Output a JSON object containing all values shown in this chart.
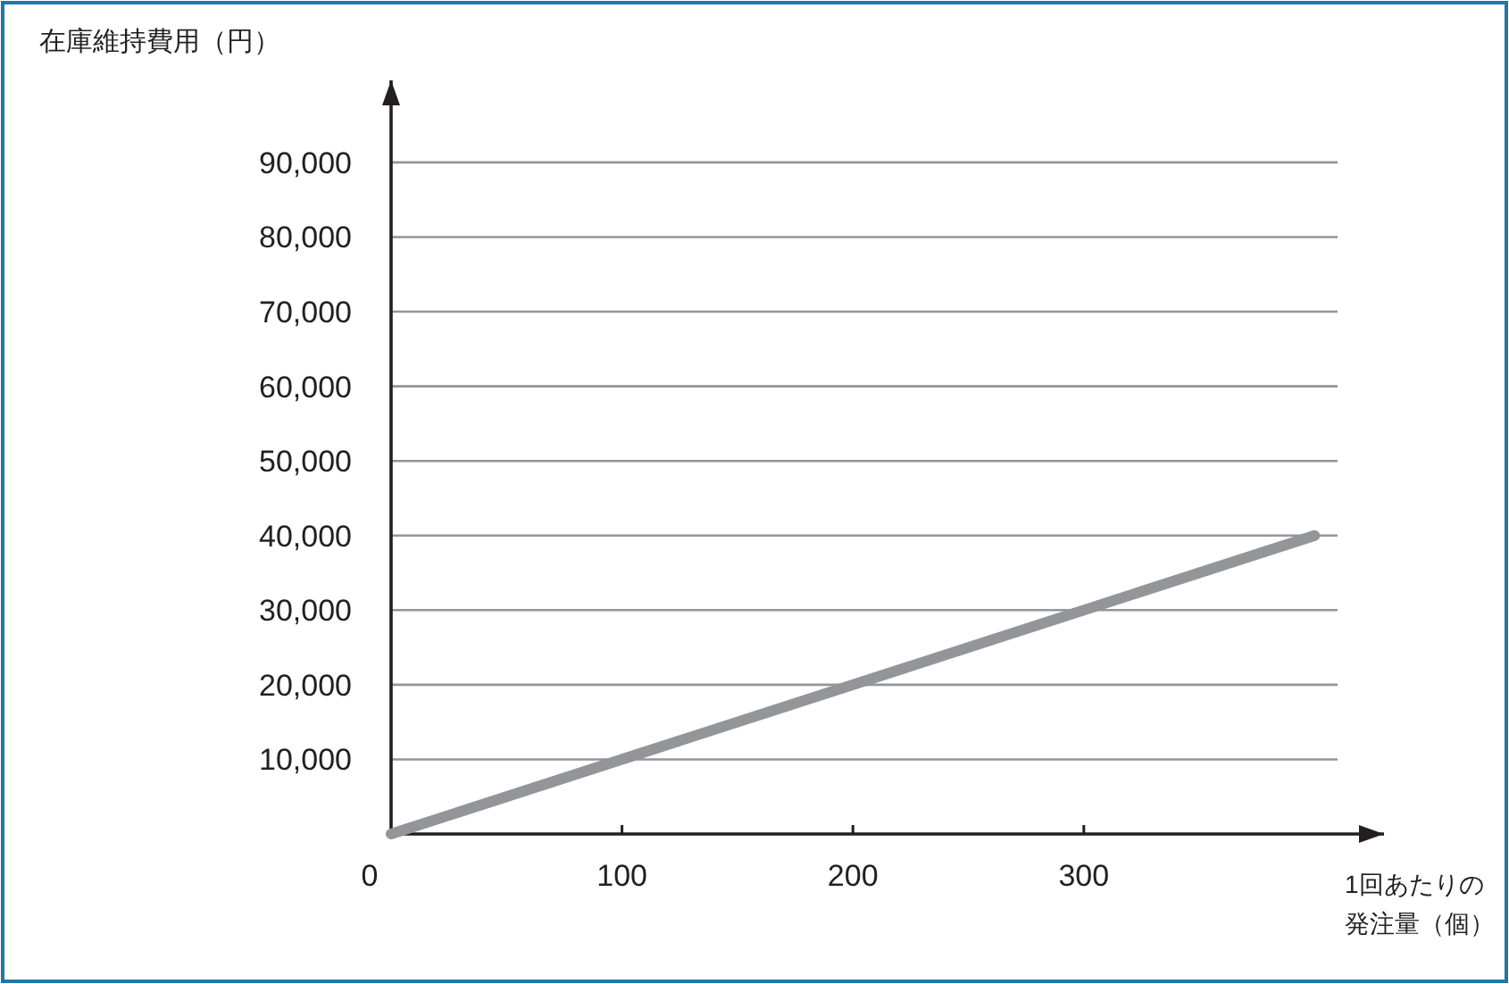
{
  "chart_data": {
    "type": "line",
    "xlabel": "1回あたりの発注量（個）",
    "ylabel": "在庫維持費用（円）",
    "x": [
      0,
      400
    ],
    "series": [
      {
        "color": "#939598",
        "values": [
          0,
          40000
        ]
      }
    ],
    "xlim": [
      0,
      430
    ],
    "ylim": [
      0,
      101000
    ],
    "xticks": [
      0,
      100,
      200,
      300
    ],
    "yticks": [
      {
        "value": 10000,
        "label": "10,000"
      },
      {
        "value": 20000,
        "label": "20,000"
      },
      {
        "value": 30000,
        "label": "30,000"
      },
      {
        "value": 40000,
        "label": "40,000"
      },
      {
        "value": 50000,
        "label": "50,000"
      },
      {
        "value": 60000,
        "label": "60,000"
      },
      {
        "value": 70000,
        "label": "70,000"
      },
      {
        "value": 80000,
        "label": "80,000"
      },
      {
        "value": 90000,
        "label": "90,000"
      }
    ],
    "grid": "y",
    "marker": "none",
    "line_style": "solid"
  }
}
